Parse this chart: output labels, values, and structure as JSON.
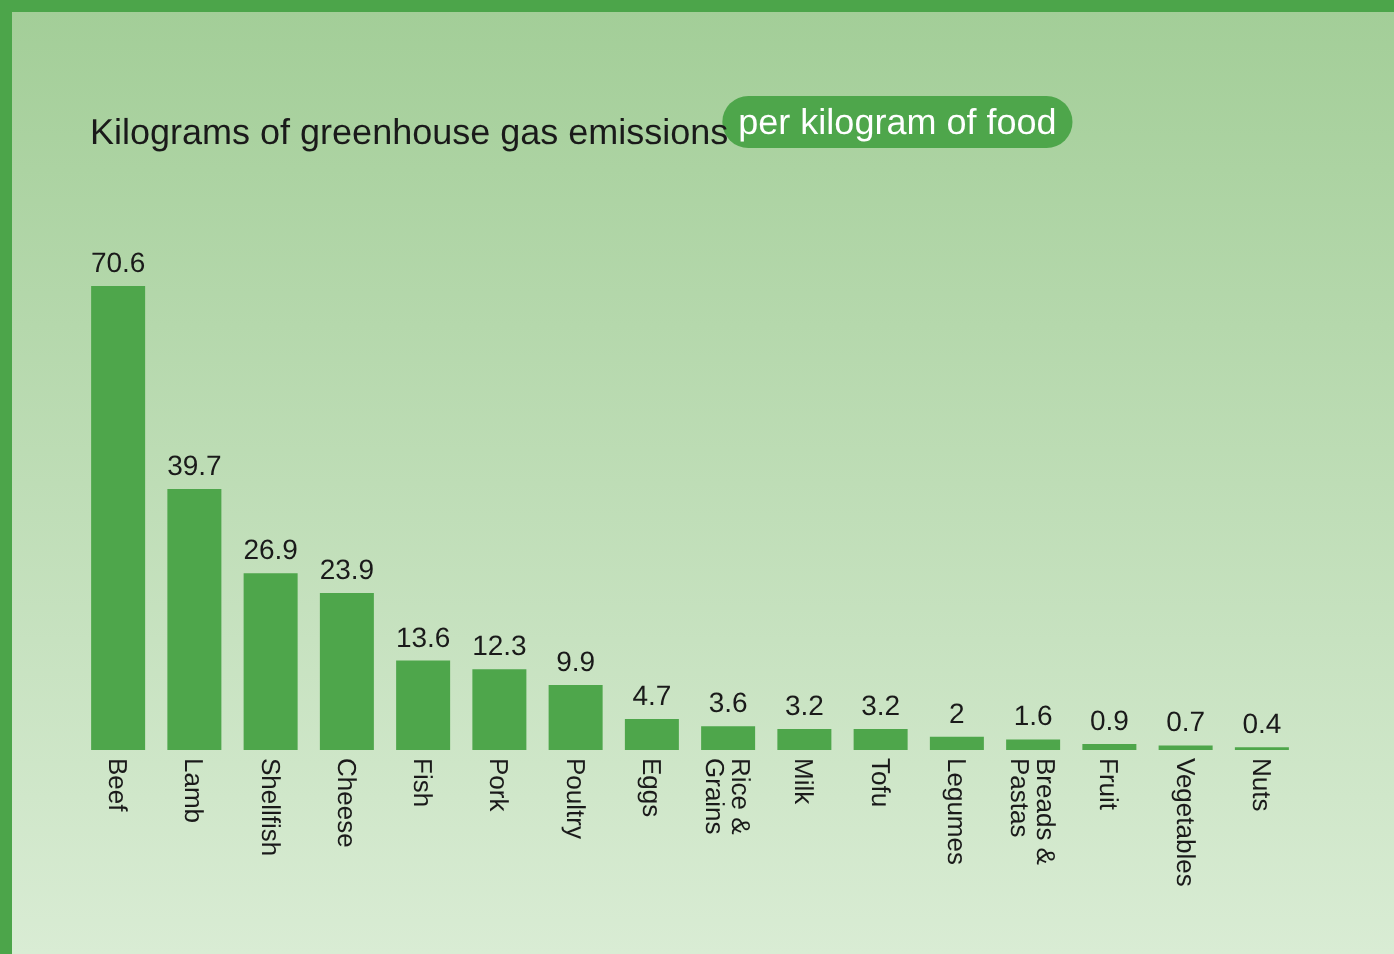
{
  "chart_data": {
    "type": "bar",
    "title": "Kilograms of greenhouse gas emissions",
    "subtitle": "per kilogram of food",
    "categories": [
      "Beef",
      "Lamb",
      "Shellfish",
      "Cheese",
      "Fish",
      "Pork",
      "Poultry",
      "Eggs",
      "Rice & Grains",
      "Milk",
      "Tofu",
      "Legumes",
      "Breads & Pastas",
      "Fruit",
      "Vegetables",
      "Nuts"
    ],
    "values": [
      70.6,
      39.7,
      26.9,
      23.9,
      13.6,
      12.3,
      9.9,
      4.7,
      3.6,
      3.2,
      3.2,
      2,
      1.6,
      0.9,
      0.7,
      0.4
    ],
    "color": "#4ea64b",
    "data_labels": true
  }
}
